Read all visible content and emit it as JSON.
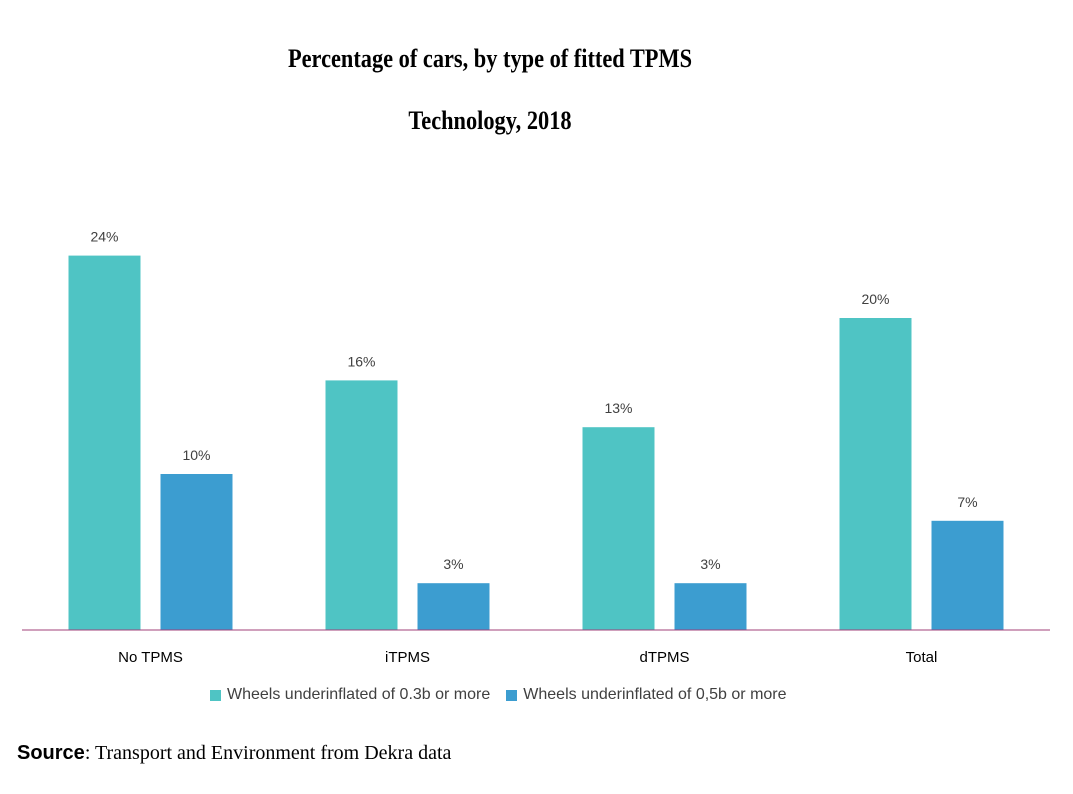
{
  "chart_data": {
    "type": "bar",
    "title": [
      "Percentage of cars, by type of fitted TPMS",
      "Technology, 2018"
    ],
    "categories": [
      "No TPMS",
      "iTPMS",
      "dTPMS",
      "Total"
    ],
    "series": [
      {
        "name": "Wheels underinflated of 0.3b or more",
        "values": [
          24,
          16,
          13,
          20
        ],
        "labels": [
          "24%",
          "16%",
          "13%",
          "20%"
        ],
        "color": "#4fc4c4"
      },
      {
        "name": "Wheels underinflated of 0,5b or more",
        "values": [
          10,
          3,
          3,
          7
        ],
        "labels": [
          "10%",
          "3%",
          "3%",
          "7%"
        ],
        "color": "#3c9dd0"
      }
    ],
    "unit": "%",
    "ylim": [
      0,
      30
    ],
    "grid": false,
    "legend_position": "bottom",
    "axis_color": "#a0407a"
  },
  "source": {
    "label": "Source",
    "text": ": Transport and Environment from Dekra data"
  }
}
